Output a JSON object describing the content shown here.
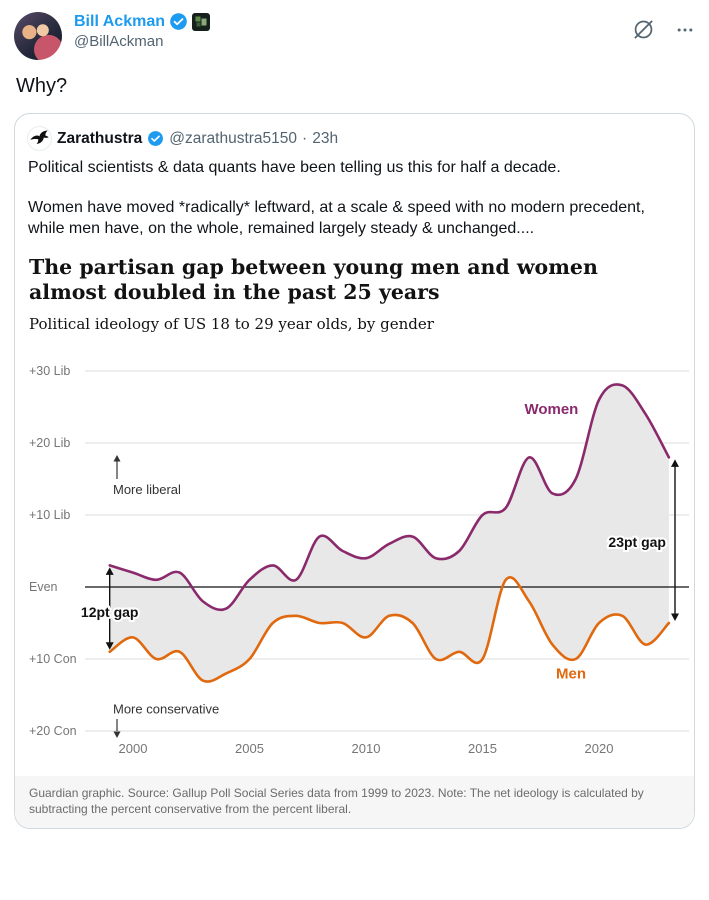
{
  "post": {
    "author": "Bill Ackman",
    "handle": "@BillAckman",
    "text": "Why?"
  },
  "actions": {
    "grok_icon": "slashed-circle",
    "more_icon": "ellipsis"
  },
  "quote": {
    "author": "Zarathustra",
    "handle": "@zarathustra5150",
    "dot": "·",
    "timestamp": "23h",
    "paragraphs": [
      "Political scientists & data quants have been telling us this for half a decade.",
      "Women have moved *radically* leftward, at a scale & speed with no modern precedent, while men have, on the whole, remained largely steady & unchanged...."
    ]
  },
  "chart_data": {
    "type": "line",
    "title": "The partisan gap between young men and women almost doubled in the past 25 years",
    "subtitle": "Political ideology of US 18 to 29 year olds, by gender",
    "source": "Guardian graphic. Source: Gallup Poll Social Series data from 1999 to 2023. Note: The net ideology is calculated by subtracting the percent conservative from the percent liberal.",
    "x": [
      1999,
      2000,
      2001,
      2002,
      2003,
      2004,
      2005,
      2006,
      2007,
      2008,
      2009,
      2010,
      2011,
      2012,
      2013,
      2014,
      2015,
      2016,
      2017,
      2018,
      2019,
      2020,
      2021,
      2022,
      2023
    ],
    "series": [
      {
        "name": "Women",
        "color": "#8a2a6c",
        "values": [
          3,
          2,
          1,
          2,
          -2,
          -3,
          1,
          3,
          1,
          7,
          5,
          4,
          6,
          7,
          4,
          5,
          10,
          11,
          18,
          13,
          15,
          26,
          28,
          24,
          18
        ]
      },
      {
        "name": "Men",
        "color": "#e0690f",
        "values": [
          -9,
          -7,
          -10,
          -9,
          -13,
          -12,
          -10,
          -5,
          -4,
          -5,
          -5,
          -7,
          -4,
          -5,
          -10,
          -9,
          -10,
          1,
          -2,
          -8,
          -10,
          -5,
          -4,
          -8,
          -5
        ]
      }
    ],
    "ylim": [
      -20,
      30
    ],
    "grid": true,
    "legend_position": "inline-annotations",
    "yticks": [
      {
        "value": 30,
        "label": "+30 Lib"
      },
      {
        "value": 20,
        "label": "+20 Lib"
      },
      {
        "value": 10,
        "label": "+10 Lib"
      },
      {
        "value": 0,
        "label": "Even"
      },
      {
        "value": -10,
        "label": "+10 Con"
      },
      {
        "value": -20,
        "label": "+20 Con"
      }
    ],
    "xticks": [
      2000,
      2005,
      2010,
      2015,
      2020
    ],
    "annotations": {
      "women_label": "Women",
      "men_label": "Men",
      "more_liberal": "More liberal",
      "more_conservative": "More conservative",
      "gap_start": {
        "label": "12pt gap",
        "year": 1999,
        "from": 3,
        "to": -9
      },
      "gap_end": {
        "label": "23pt gap",
        "year": 2023,
        "from": 18,
        "to": -5
      }
    },
    "area_fill": "#e8e8e8",
    "grid_color": "#dcdcdc",
    "zero_line_color": "#121212",
    "axis_text_color": "#767676"
  }
}
